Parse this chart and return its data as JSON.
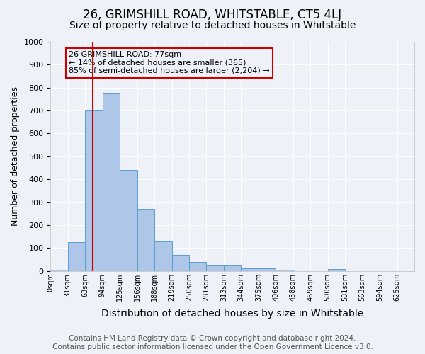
{
  "title": "26, GRIMSHILL ROAD, WHITSTABLE, CT5 4LJ",
  "subtitle": "Size of property relative to detached houses in Whitstable",
  "xlabel": "Distribution of detached houses by size in Whitstable",
  "ylabel": "Number of detached properties",
  "bin_labels": [
    "0sqm",
    "31sqm",
    "63sqm",
    "94sqm",
    "125sqm",
    "156sqm",
    "188sqm",
    "219sqm",
    "250sqm",
    "281sqm",
    "313sqm",
    "344sqm",
    "375sqm",
    "406sqm",
    "438sqm",
    "469sqm",
    "500sqm",
    "531sqm",
    "563sqm",
    "594sqm",
    "625sqm"
  ],
  "bar_heights": [
    5,
    125,
    700,
    775,
    440,
    270,
    130,
    70,
    40,
    25,
    25,
    12,
    12,
    5,
    0,
    0,
    8,
    0,
    0,
    0,
    0
  ],
  "bar_color": "#aec6e8",
  "bar_edge_color": "#5a9fd4",
  "property_bin_index": 2.43,
  "red_line_color": "#cc0000",
  "annotation_text": "26 GRIMSHILL ROAD: 77sqm\n← 14% of detached houses are smaller (365)\n85% of semi-detached houses are larger (2,204) →",
  "annotation_box_color": "#cc0000",
  "ylim": [
    0,
    1000
  ],
  "yticks": [
    0,
    100,
    200,
    300,
    400,
    500,
    600,
    700,
    800,
    900,
    1000
  ],
  "footer_line1": "Contains HM Land Registry data © Crown copyright and database right 2024.",
  "footer_line2": "Contains public sector information licensed under the Open Government Licence v3.0.",
  "background_color": "#eef2f8",
  "grid_color": "#ffffff",
  "title_fontsize": 12,
  "subtitle_fontsize": 10,
  "xlabel_fontsize": 10,
  "ylabel_fontsize": 9,
  "tick_fontsize": 7,
  "footer_fontsize": 7.5,
  "annotation_fontsize": 8
}
